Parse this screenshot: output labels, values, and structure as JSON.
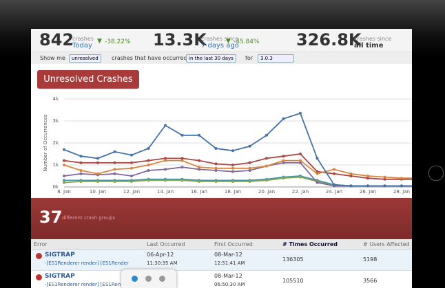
{
  "stats": [
    {
      "value": "842",
      "label": "crashes",
      "period": "Today",
      "change": "-38.22%"
    },
    {
      "value": "13.3K",
      "label": "crashes since",
      "period": "7 days ago",
      "change": "-45.84%"
    },
    {
      "value": "326.8K",
      "label": "crashes since",
      "period": "all time"
    }
  ],
  "filters": {
    "show_me": "Show me",
    "status": "unresolved",
    "occurred": "crashes that have occurred",
    "range": "in the last 30 days",
    "for": "for",
    "version": "3.0.3"
  },
  "button": "Unresolved Crashes",
  "chart_data": {
    "type": "line",
    "y_label": "Number of Occurrences",
    "categories": [
      "8. Jan",
      null,
      "10. Jan",
      null,
      "12. Jan",
      null,
      "14. Jan",
      null,
      "16. Jan",
      null,
      "18. Jan",
      null,
      "20. Jan",
      null,
      "22. Jan",
      null,
      "24. Jan",
      null,
      "26. Jan",
      null,
      "28. Jan",
      null
    ],
    "ylim": [
      0,
      4000
    ],
    "yticks": [
      {
        "value": 0,
        "label": "0k"
      },
      {
        "value": 1000,
        "label": "1k"
      },
      {
        "value": 2000,
        "label": "2k"
      },
      {
        "value": 3000,
        "label": "3k"
      },
      {
        "value": 4000,
        "label": "4k"
      }
    ],
    "grid": true,
    "series": [
      {
        "color": "#3d96ae",
        "values": [
          300,
          300,
          300,
          300,
          300,
          350,
          350,
          350,
          300,
          300,
          300,
          300,
          350,
          450,
          500,
          300,
          100,
          50,
          50,
          50,
          50,
          50
        ]
      },
      {
        "color": "#89a54e",
        "values": [
          200,
          250,
          250,
          250,
          250,
          300,
          300,
          300,
          250,
          250,
          250,
          250,
          300,
          400,
          450,
          250,
          50,
          50,
          50,
          50,
          50,
          50
        ]
      },
      {
        "color": "#80699b",
        "values": [
          500,
          600,
          550,
          600,
          500,
          750,
          800,
          900,
          800,
          750,
          700,
          750,
          950,
          1100,
          1100,
          200,
          50,
          50,
          50,
          50,
          50,
          50
        ]
      },
      {
        "color": "#aa4643",
        "values": [
          1200,
          1100,
          1100,
          1100,
          1100,
          1200,
          1300,
          1300,
          1200,
          1050,
          1000,
          1100,
          1300,
          1400,
          1500,
          700,
          600,
          500,
          400,
          350,
          350,
          350
        ]
      },
      {
        "color": "#db843d",
        "values": [
          1000,
          750,
          600,
          800,
          850,
          1000,
          1200,
          1200,
          900,
          850,
          850,
          850,
          950,
          1200,
          1200,
          600,
          800,
          600,
          500,
          450,
          400,
          400
        ]
      },
      {
        "color": "#4572a7",
        "values": [
          1700,
          1400,
          1300,
          1600,
          1450,
          1750,
          2800,
          2350,
          2350,
          1750,
          1650,
          1850,
          2350,
          3100,
          3350,
          1300,
          100,
          50,
          50,
          50,
          50,
          50
        ]
      }
    ]
  },
  "summary": {
    "count": "37",
    "label": "different crash groups"
  },
  "table": {
    "headers": [
      "Error",
      "Last Occurred",
      "First Occurred",
      "# Times Occurred",
      "# Users Affected"
    ],
    "rows": [
      {
        "error": "SIGTRAP",
        "detail": "-[ES1Renderer render] [ES1Renderer",
        "last_date": "06-Apr-12",
        "last_time": "11:30:35 AM",
        "first_date": "08-Mar-12",
        "first_time": "12:51:41 AM",
        "times": 136305,
        "users": 5198
      },
      {
        "error": "SIGTRAP",
        "detail": "-[ES1Renderer render] [ES1Renderer",
        "first_date": "08-Mar-12",
        "first_time": "06:50:30 AM",
        "times": 105510,
        "users": 3566
      }
    ]
  }
}
